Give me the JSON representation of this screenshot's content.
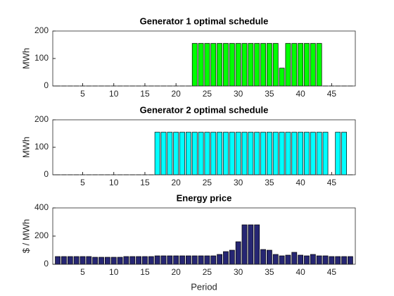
{
  "chart_data": [
    {
      "type": "bar",
      "title": "Generator 1 optimal schedule",
      "ylabel": "MWh",
      "color": "#00ff00",
      "x": [
        1,
        2,
        3,
        4,
        5,
        6,
        7,
        8,
        9,
        10,
        11,
        12,
        13,
        14,
        15,
        16,
        17,
        18,
        19,
        20,
        21,
        22,
        23,
        24,
        25,
        26,
        27,
        28,
        29,
        30,
        31,
        32,
        33,
        34,
        35,
        36,
        37,
        38,
        39,
        40,
        41,
        42,
        43,
        44,
        45,
        46,
        47,
        48
      ],
      "values": [
        0,
        0,
        0,
        0,
        0,
        0,
        0,
        0,
        0,
        0,
        0,
        0,
        0,
        0,
        0,
        0,
        0,
        0,
        0,
        0,
        0,
        0,
        155,
        155,
        155,
        155,
        155,
        155,
        155,
        155,
        155,
        155,
        155,
        155,
        155,
        155,
        65,
        155,
        155,
        155,
        155,
        155,
        155,
        0,
        0,
        0,
        0,
        0
      ],
      "xlim": [
        0.2,
        48.8
      ],
      "xticks": [
        5,
        10,
        15,
        20,
        25,
        30,
        35,
        40,
        45
      ],
      "ylim": [
        0,
        200
      ],
      "yticks": [
        0,
        100,
        200
      ]
    },
    {
      "type": "bar",
      "title": "Generator 2 optimal schedule",
      "ylabel": "MWh",
      "color": "#00ffff",
      "x": [
        1,
        2,
        3,
        4,
        5,
        6,
        7,
        8,
        9,
        10,
        11,
        12,
        13,
        14,
        15,
        16,
        17,
        18,
        19,
        20,
        21,
        22,
        23,
        24,
        25,
        26,
        27,
        28,
        29,
        30,
        31,
        32,
        33,
        34,
        35,
        36,
        37,
        38,
        39,
        40,
        41,
        42,
        43,
        44,
        45,
        46,
        47,
        48
      ],
      "values": [
        0,
        0,
        0,
        0,
        0,
        0,
        0,
        0,
        0,
        0,
        0,
        0,
        0,
        0,
        0,
        0,
        155,
        155,
        155,
        155,
        155,
        155,
        155,
        155,
        155,
        155,
        155,
        155,
        155,
        155,
        155,
        155,
        155,
        155,
        155,
        155,
        155,
        155,
        155,
        155,
        155,
        155,
        155,
        155,
        0,
        155,
        155,
        0
      ],
      "xlim": [
        0.2,
        48.8
      ],
      "xticks": [
        5,
        10,
        15,
        20,
        25,
        30,
        35,
        40,
        45
      ],
      "ylim": [
        0,
        200
      ],
      "yticks": [
        0,
        100,
        200
      ]
    },
    {
      "type": "bar",
      "title": "Energy price",
      "ylabel": "$ / MWh",
      "xlabel": "Period",
      "color": "#262673",
      "x": [
        1,
        2,
        3,
        4,
        5,
        6,
        7,
        8,
        9,
        10,
        11,
        12,
        13,
        14,
        15,
        16,
        17,
        18,
        19,
        20,
        21,
        22,
        23,
        24,
        25,
        26,
        27,
        28,
        29,
        30,
        31,
        32,
        33,
        34,
        35,
        36,
        37,
        38,
        39,
        40,
        41,
        42,
        43,
        44,
        45,
        46,
        47,
        48
      ],
      "values": [
        55,
        55,
        55,
        55,
        55,
        55,
        50,
        50,
        50,
        50,
        50,
        55,
        55,
        55,
        55,
        55,
        60,
        60,
        60,
        60,
        60,
        60,
        60,
        60,
        60,
        60,
        70,
        90,
        100,
        160,
        280,
        280,
        280,
        105,
        100,
        70,
        60,
        65,
        85,
        65,
        60,
        70,
        60,
        60,
        55,
        55,
        55,
        55
      ],
      "xlim": [
        0.2,
        48.8
      ],
      "xticks": [
        5,
        10,
        15,
        20,
        25,
        30,
        35,
        40,
        45
      ],
      "ylim": [
        0,
        400
      ],
      "yticks": [
        0,
        200,
        400
      ]
    }
  ]
}
